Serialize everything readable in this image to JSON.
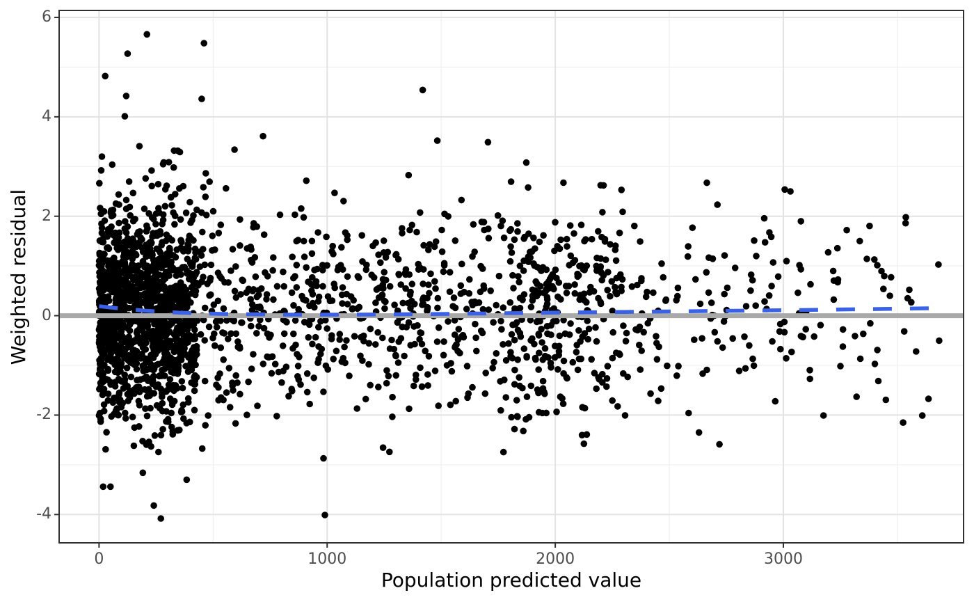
{
  "chart_data": {
    "type": "scatter",
    "title": "",
    "xlabel": "Population predicted value",
    "ylabel": "Weighted residual",
    "x_domain": [
      -175,
      3790
    ],
    "y_domain": [
      -4.57,
      6.14
    ],
    "x_ticks": {
      "major": [
        0,
        1000,
        2000,
        3000
      ],
      "labels": [
        "0",
        "1000",
        "2000",
        "3000"
      ],
      "minor": [
        500,
        1500,
        2500,
        3500
      ]
    },
    "y_ticks": {
      "major": [
        -4,
        -2,
        0,
        2,
        4,
        6
      ],
      "labels": [
        "-4",
        "-2",
        "0",
        "2",
        "4",
        "6"
      ],
      "minor": [
        -3,
        -1,
        1,
        3,
        5
      ]
    },
    "grid": "on",
    "legend": "none",
    "reference_line": {
      "y": 0,
      "color": "#A9A9A9",
      "stroke_width": 7
    },
    "smooth_line": {
      "color": "#3B62E6",
      "style": "dashed",
      "stroke_width": 5.5,
      "dash": [
        27,
        26
      ],
      "points": [
        [
          0,
          0.19
        ],
        [
          80,
          0.15
        ],
        [
          200,
          0.1
        ],
        [
          350,
          0.06
        ],
        [
          550,
          0.035
        ],
        [
          800,
          0.02
        ],
        [
          1100,
          0.02
        ],
        [
          1500,
          0.035
        ],
        [
          1900,
          0.055
        ],
        [
          2300,
          0.075
        ],
        [
          2700,
          0.095
        ],
        [
          3100,
          0.115
        ],
        [
          3650,
          0.15
        ]
      ]
    },
    "points": {
      "color": "#000000",
      "radius": 4.8,
      "count_estimate": 2340,
      "description": "Dense cloud of individual weighted residuals vs population predicted values; density highest near x=0 and thins out toward x=3700; residuals mostly between -2 and 2, roughly symmetric about 0.",
      "generator": {
        "seed": 1337,
        "count": 2300,
        "x_mixture": [
          {
            "weight": 0.51,
            "min": 0,
            "span": 430,
            "exp": 1.3
          },
          {
            "weight": 0.37,
            "min": 200,
            "span": 2100,
            "exp": 1.15
          },
          {
            "weight": 0.12,
            "min": 1800,
            "span": 1900,
            "exp": 1.3
          }
        ],
        "y_mean": 0.05,
        "y_sd": 1.02,
        "y_pos_scale": 1.06,
        "y_min": -2.85,
        "y_max": 3.35
      },
      "outliers": [
        [
          210,
          5.66
        ],
        [
          460,
          5.48
        ],
        [
          125,
          5.27
        ],
        [
          27,
          4.82
        ],
        [
          119,
          4.42
        ],
        [
          450,
          4.36
        ],
        [
          1419,
          4.54
        ],
        [
          113,
          4.01
        ],
        [
          177,
          3.41
        ],
        [
          329,
          3.32
        ],
        [
          594,
          3.34
        ],
        [
          719,
          3.61
        ],
        [
          1483,
          3.52
        ],
        [
          1705,
          3.49
        ],
        [
          1873,
          3.08
        ],
        [
          2212,
          2.62
        ],
        [
          3031,
          2.5
        ],
        [
          3077,
          1.9
        ],
        [
          3536,
          1.86
        ],
        [
          3278,
          1.72
        ],
        [
          3335,
          1.5
        ],
        [
          2872,
          1.51
        ],
        [
          2881,
          1.2
        ],
        [
          3119,
          0.63
        ],
        [
          3552,
          0.52
        ],
        [
          3545,
          0.35
        ],
        [
          3135,
          -0.42
        ],
        [
          3314,
          -0.41
        ],
        [
          3412,
          -0.69
        ],
        [
          3582,
          -0.72
        ],
        [
          3609,
          -2.01
        ],
        [
          2630,
          -2.35
        ],
        [
          1860,
          -2.32
        ],
        [
          1273,
          -2.74
        ],
        [
          984,
          -2.87
        ],
        [
          990,
          -4.01
        ],
        [
          271,
          -4.08
        ],
        [
          240,
          -3.82
        ],
        [
          18,
          -3.44
        ],
        [
          50,
          -3.44
        ],
        [
          192,
          -3.16
        ],
        [
          384,
          -3.3
        ]
      ]
    },
    "theme": {
      "background": "#FFFFFF",
      "panel_border": "#303030",
      "grid_major": "#E3E3E3",
      "grid_minor": "#F0F0F0",
      "tick_color": "#303030",
      "tick_label_color": "#4D4D4D",
      "title_color": "#000000"
    }
  }
}
